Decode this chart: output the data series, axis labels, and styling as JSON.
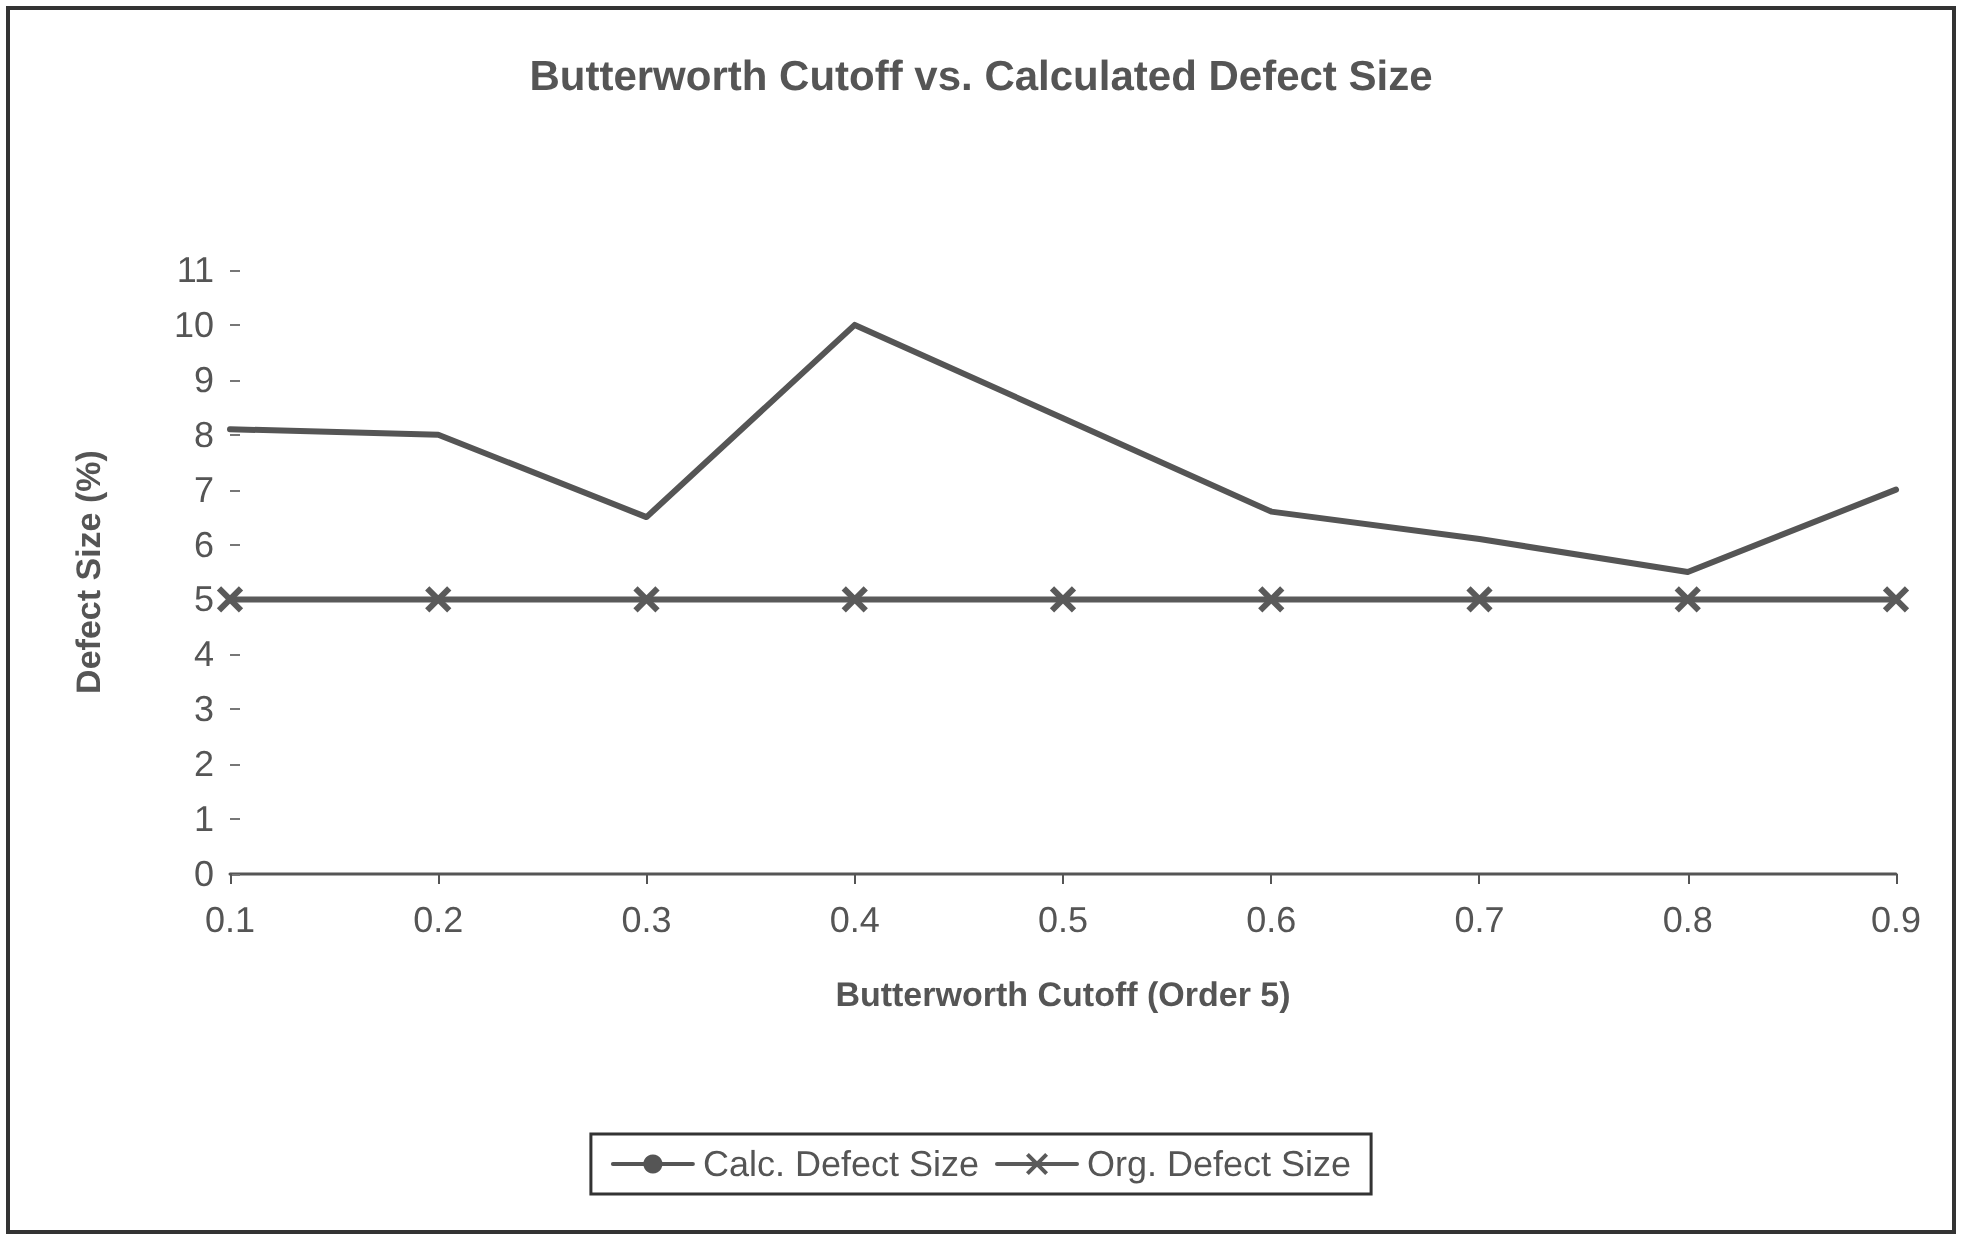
{
  "chart_data": {
    "type": "line",
    "title": "Butterworth Cutoff vs. Calculated Defect Size",
    "xlabel": "Butterworth Cutoff (Order 5)",
    "ylabel": "Defect Size (%)",
    "x": [
      0.1,
      0.2,
      0.3,
      0.4,
      0.5,
      0.6,
      0.7,
      0.8,
      0.9
    ],
    "xlim": [
      0.1,
      0.9
    ],
    "xticks": [
      0.1,
      0.2,
      0.3,
      0.4,
      0.5,
      0.6,
      0.7,
      0.8,
      0.9
    ],
    "ylim": [
      0,
      11
    ],
    "yticks": [
      0,
      1,
      2,
      3,
      4,
      5,
      6,
      7,
      8,
      9,
      10,
      11
    ],
    "series": [
      {
        "name": "Calc. Defect Size",
        "color": "#555555",
        "marker": "none",
        "values": [
          8.1,
          8.0,
          6.5,
          10.0,
          8.3,
          6.6,
          6.1,
          5.5,
          7.0
        ]
      },
      {
        "name": "Org. Defect Size",
        "color": "#5a5a5a",
        "marker": "cross",
        "values": [
          5,
          5,
          5,
          5,
          5,
          5,
          5,
          5,
          5
        ]
      }
    ],
    "grid": false,
    "legend": "bottom",
    "line_style": "solid"
  }
}
